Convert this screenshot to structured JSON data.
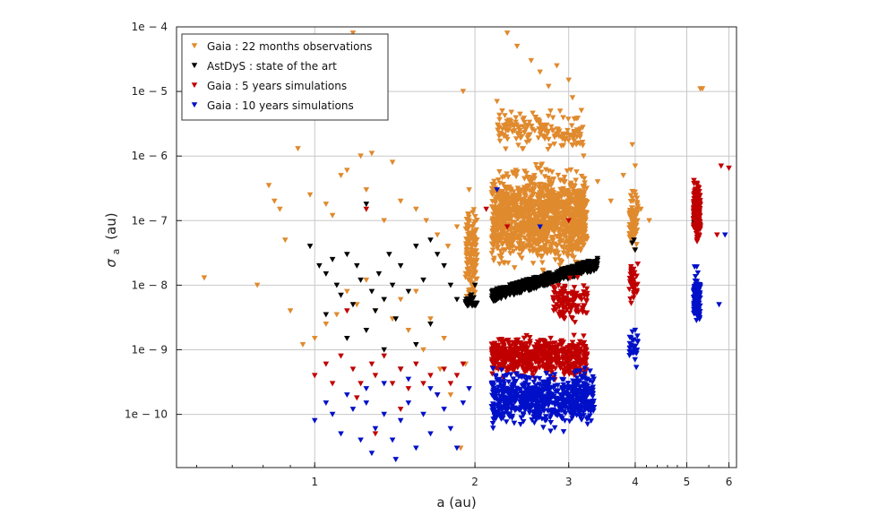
{
  "chart_data": {
    "type": "scatter",
    "xlabel": "a (au)",
    "ylabel_symbol": "σ",
    "ylabel_subscript": "a",
    "ylabel_unit": "(au)",
    "xscale": "log",
    "yscale": "log",
    "xlim": [
      0.55,
      6.2
    ],
    "ylim": [
      1.5e-11,
      0.0001
    ],
    "grid": true,
    "legend_position": "top-left",
    "marker": "down-triangle",
    "x_ticks": [
      {
        "value": 1,
        "label": "1"
      },
      {
        "value": 2,
        "label": "2"
      },
      {
        "value": 3,
        "label": "3"
      },
      {
        "value": 4,
        "label": "4"
      },
      {
        "value": 5,
        "label": "5"
      },
      {
        "value": 6,
        "label": "6"
      }
    ],
    "y_ticks": [
      {
        "value": 0.0001,
        "label": "1e − 4"
      },
      {
        "value": 1e-05,
        "label": "1e − 5"
      },
      {
        "value": 1e-06,
        "label": "1e − 6"
      },
      {
        "value": 1e-07,
        "label": "1e − 7"
      },
      {
        "value": 1e-08,
        "label": "1e − 8"
      },
      {
        "value": 1e-09,
        "label": "1e − 9"
      },
      {
        "value": 1e-10,
        "label": "1e − 10"
      }
    ],
    "series": [
      {
        "name": "Gaia : 22 months observations",
        "color": "#e08a2e",
        "points": [
          [
            0.62,
            1.3e-08
          ],
          [
            0.78,
            1e-08
          ],
          [
            0.82,
            3.5e-07
          ],
          [
            0.84,
            2e-07
          ],
          [
            0.86,
            1.5e-07
          ],
          [
            0.88,
            5e-08
          ],
          [
            0.9,
            4e-09
          ],
          [
            0.93,
            1.3e-06
          ],
          [
            0.95,
            1.2e-09
          ],
          [
            0.98,
            2.5e-07
          ],
          [
            1.05,
            1.8e-07
          ],
          [
            1.08,
            1.2e-07
          ],
          [
            1.12,
            5e-07
          ],
          [
            1.15,
            6e-07
          ],
          [
            1.18,
            8e-05
          ],
          [
            1.22,
            1e-06
          ],
          [
            1.25,
            3e-07
          ],
          [
            1.28,
            1.1e-06
          ],
          [
            1.35,
            1e-07
          ],
          [
            1.4,
            8e-07
          ],
          [
            1.45,
            2e-07
          ],
          [
            1.55,
            1.5e-07
          ],
          [
            1.62,
            1e-07
          ],
          [
            1.7,
            6e-08
          ],
          [
            1.78,
            4e-08
          ],
          [
            1.85,
            8e-08
          ],
          [
            1.9,
            1e-05
          ],
          [
            1.95,
            3e-07
          ],
          [
            1.4,
            3e-09
          ],
          [
            1.5,
            2e-09
          ],
          [
            1.6,
            1e-09
          ],
          [
            1.72,
            5e-10
          ],
          [
            1.8,
            2e-10
          ],
          [
            1.88,
            3e-11
          ],
          [
            1.3,
            4e-09
          ],
          [
            1.2,
            5e-09
          ],
          [
            1.1,
            3.5e-09
          ],
          [
            1.05,
            2.5e-09
          ],
          [
            1.0,
            1.5e-09
          ],
          [
            1.15,
            8e-09
          ],
          [
            1.25,
            1.2e-08
          ],
          [
            1.45,
            6e-09
          ],
          [
            1.55,
            8e-09
          ],
          [
            1.65,
            3e-09
          ],
          [
            1.75,
            1.5e-09
          ],
          [
            1.92,
            6e-10
          ],
          [
            2.3,
            8e-05
          ],
          [
            2.4,
            5e-05
          ],
          [
            2.55,
            3e-05
          ],
          [
            2.65,
            2e-05
          ],
          [
            2.75,
            1.2e-05
          ],
          [
            2.85,
            2.5e-05
          ],
          [
            3.0,
            1.5e-05
          ],
          [
            3.05,
            8e-06
          ],
          [
            2.2,
            7e-06
          ],
          [
            2.25,
            5e-06
          ],
          [
            2.35,
            3e-06
          ],
          [
            2.45,
            2e-06
          ],
          [
            2.6,
            4e-06
          ],
          [
            2.7,
            3e-06
          ],
          [
            2.9,
            2e-06
          ],
          [
            3.1,
            1.5e-06
          ],
          [
            3.2,
            1e-06
          ],
          [
            3.4,
            4e-07
          ],
          [
            3.6,
            2e-07
          ],
          [
            3.8,
            5e-07
          ],
          [
            3.95,
            1.5e-06
          ],
          [
            4.0,
            7e-07
          ],
          [
            4.1,
            1.5e-07
          ],
          [
            4.25,
            1e-07
          ],
          [
            5.3,
            1.1e-05
          ],
          [
            5.35,
            1.1e-05
          ]
        ],
        "clouds": [
          {
            "xmin": 1.92,
            "xmax": 2.02,
            "ymin": 4e-09,
            "ymax": 2.5e-07,
            "n": 140
          },
          {
            "xmin": 2.15,
            "xmax": 3.25,
            "ymin": 1.2e-08,
            "ymax": 1e-06,
            "n": 1300
          },
          {
            "xmin": 2.2,
            "xmax": 3.2,
            "ymin": 1e-06,
            "ymax": 6e-06,
            "n": 160
          },
          {
            "xmin": 3.9,
            "xmax": 4.05,
            "ymin": 3e-08,
            "ymax": 4e-07,
            "n": 80
          }
        ]
      },
      {
        "name": "AstDyS : state of the art",
        "color": "#000000",
        "points": [
          [
            0.98,
            4e-08
          ],
          [
            1.02,
            2e-08
          ],
          [
            1.05,
            1.5e-08
          ],
          [
            1.08,
            2.5e-08
          ],
          [
            1.1,
            1e-08
          ],
          [
            1.12,
            7e-09
          ],
          [
            1.15,
            3e-08
          ],
          [
            1.18,
            5e-09
          ],
          [
            1.2,
            2e-08
          ],
          [
            1.22,
            1.2e-08
          ],
          [
            1.25,
            1.8e-07
          ],
          [
            1.28,
            8e-09
          ],
          [
            1.3,
            4e-09
          ],
          [
            1.32,
            1.5e-08
          ],
          [
            1.35,
            6e-09
          ],
          [
            1.38,
            3e-08
          ],
          [
            1.4,
            1e-08
          ],
          [
            1.42,
            3e-09
          ],
          [
            1.45,
            2e-08
          ],
          [
            1.5,
            8e-09
          ],
          [
            1.55,
            4e-08
          ],
          [
            1.6,
            1.2e-08
          ],
          [
            1.65,
            5e-08
          ],
          [
            1.7,
            3e-08
          ],
          [
            1.75,
            2e-08
          ],
          [
            1.8,
            1e-08
          ],
          [
            1.85,
            6e-09
          ],
          [
            1.35,
            1e-09
          ],
          [
            1.25,
            2e-09
          ],
          [
            1.45,
            5e-10
          ],
          [
            1.15,
            1.5e-09
          ],
          [
            1.55,
            1.2e-09
          ],
          [
            1.65,
            2.5e-09
          ],
          [
            1.05,
            3.5e-09
          ],
          [
            2.0,
            1e-08
          ],
          [
            3.95,
            4.5e-08
          ],
          [
            4.0,
            3.5e-08
          ],
          [
            3.98,
            5e-08
          ]
        ],
        "clouds": [
          {
            "xmin": 1.92,
            "xmax": 2.02,
            "ymin": 4e-09,
            "ymax": 8e-09,
            "n": 30
          },
          {
            "xmin": 2.15,
            "xmax": 3.4,
            "ymin": 5.5e-09,
            "ymax": 2.5e-08,
            "n": 500,
            "trend": true
          },
          {
            "xmin": 5.15,
            "xmax": 5.3,
            "ymin": 6e-08,
            "ymax": 2e-07,
            "n": 20
          }
        ]
      },
      {
        "name": "Gaia : 5 years simulations",
        "color": "#c00000",
        "points": [
          [
            1.0,
            4e-10
          ],
          [
            1.05,
            6e-10
          ],
          [
            1.08,
            3e-10
          ],
          [
            1.12,
            8e-10
          ],
          [
            1.15,
            4e-09
          ],
          [
            1.18,
            5e-10
          ],
          [
            1.22,
            3e-10
          ],
          [
            1.25,
            1.5e-07
          ],
          [
            1.28,
            6e-10
          ],
          [
            1.3,
            4e-10
          ],
          [
            1.35,
            8e-10
          ],
          [
            1.4,
            3e-10
          ],
          [
            1.45,
            5e-10
          ],
          [
            1.5,
            2.5e-10
          ],
          [
            1.55,
            6e-10
          ],
          [
            1.6,
            3e-10
          ],
          [
            1.65,
            4e-10
          ],
          [
            1.7,
            2e-10
          ],
          [
            1.75,
            5e-10
          ],
          [
            1.8,
            3e-10
          ],
          [
            1.85,
            4e-10
          ],
          [
            1.9,
            6e-10
          ],
          [
            1.3,
            5e-11
          ],
          [
            1.45,
            1.2e-10
          ],
          [
            1.2,
            1.8e-10
          ],
          [
            2.1,
            1.5e-07
          ],
          [
            2.3,
            8e-08
          ],
          [
            3.0,
            1e-07
          ],
          [
            5.8,
            7e-07
          ],
          [
            6.0,
            6.5e-07
          ],
          [
            5.7,
            6e-08
          ]
        ],
        "clouds": [
          {
            "xmin": 2.15,
            "xmax": 3.25,
            "ymin": 3e-10,
            "ymax": 2e-09,
            "n": 600
          },
          {
            "xmin": 2.8,
            "xmax": 3.25,
            "ymin": 2e-09,
            "ymax": 1.5e-08,
            "n": 120
          },
          {
            "xmin": 3.9,
            "xmax": 4.05,
            "ymin": 3e-09,
            "ymax": 3.5e-08,
            "n": 40
          },
          {
            "xmin": 5.15,
            "xmax": 5.3,
            "ymin": 4e-08,
            "ymax": 5e-07,
            "n": 250
          }
        ]
      },
      {
        "name": "Gaia : 10 years simulations",
        "color": "#0010c8",
        "points": [
          [
            1.0,
            8e-11
          ],
          [
            1.05,
            1.5e-10
          ],
          [
            1.08,
            1e-10
          ],
          [
            1.12,
            5e-11
          ],
          [
            1.15,
            2e-10
          ],
          [
            1.18,
            1.2e-10
          ],
          [
            1.22,
            4e-11
          ],
          [
            1.25,
            1.5e-10
          ],
          [
            1.28,
            2.5e-11
          ],
          [
            1.3,
            6e-11
          ],
          [
            1.35,
            1e-10
          ],
          [
            1.4,
            4e-11
          ],
          [
            1.42,
            2e-11
          ],
          [
            1.45,
            8e-11
          ],
          [
            1.5,
            1.5e-10
          ],
          [
            1.55,
            3e-11
          ],
          [
            1.6,
            1e-10
          ],
          [
            1.65,
            5e-11
          ],
          [
            1.7,
            2e-10
          ],
          [
            1.75,
            1.2e-10
          ],
          [
            1.8,
            6e-11
          ],
          [
            1.85,
            3e-11
          ],
          [
            1.9,
            1.5e-10
          ],
          [
            1.95,
            2.5e-10
          ],
          [
            1.35,
            3e-10
          ],
          [
            1.25,
            2.5e-10
          ],
          [
            1.5,
            3.5e-10
          ],
          [
            1.65,
            2.5e-10
          ],
          [
            2.2,
            3e-07
          ],
          [
            2.65,
            8e-08
          ],
          [
            5.9,
            6e-08
          ],
          [
            5.75,
            5e-09
          ]
        ],
        "clouds": [
          {
            "xmin": 2.15,
            "xmax": 3.35,
            "ymin": 5e-11,
            "ymax": 6e-10,
            "n": 700
          },
          {
            "xmin": 3.9,
            "xmax": 4.05,
            "ymin": 4e-10,
            "ymax": 3e-09,
            "n": 30
          },
          {
            "xmin": 5.15,
            "xmax": 5.3,
            "ymin": 2e-09,
            "ymax": 2e-08,
            "n": 150
          }
        ]
      }
    ]
  }
}
